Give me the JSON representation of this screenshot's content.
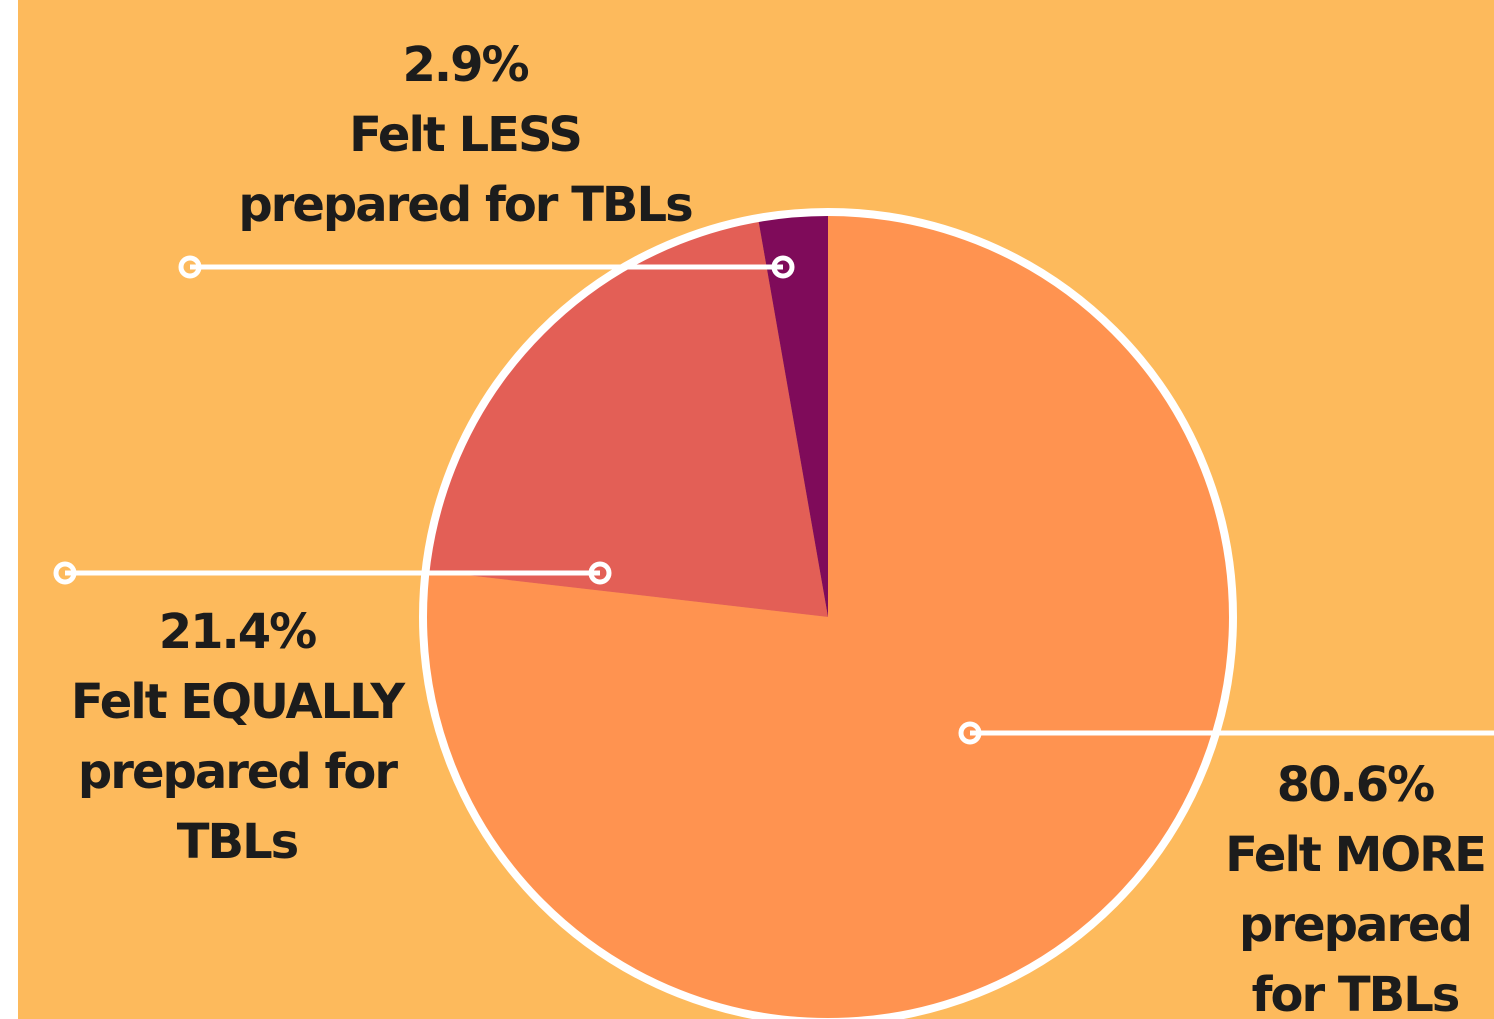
{
  "chart_data": {
    "type": "pie",
    "categories": [
      "Felt MORE\nprepared\nfor TBLs",
      "Felt EQUALLY\nprepared for\nTBLs",
      "Felt LESS\nprepared for TBLs"
    ],
    "values": [
      80.6,
      21.4,
      2.9
    ],
    "value_labels": [
      "80.6%",
      "21.4%",
      "2.9%"
    ],
    "colors": [
      "#FF9350",
      "#E35F56",
      "#7F0B5A"
    ]
  }
}
